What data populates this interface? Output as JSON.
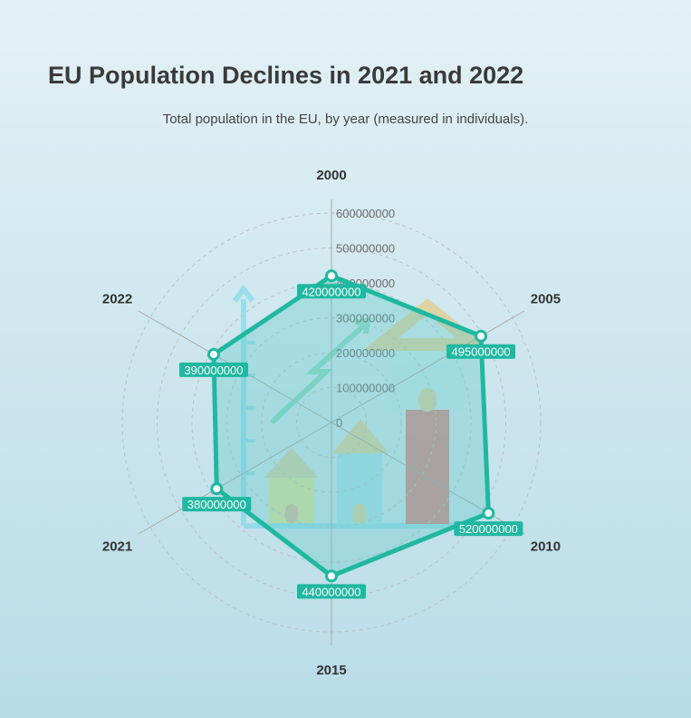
{
  "title": "EU Population Declines in 2021 and 2022",
  "subtitle": "Total population in the EU, by year (measured in individuals).",
  "colors": {
    "accent": "#1fb8a0",
    "fill": "#5fc9c9",
    "label_bg": "#1fb8a0",
    "grid": "#b8c0c4"
  },
  "chart_data": {
    "type": "radar",
    "title": "EU Population Declines in 2021 and 2022",
    "subtitle": "Total population in the EU, by year (measured in individuals).",
    "categories": [
      "2000",
      "2005",
      "2010",
      "2015",
      "2021",
      "2022"
    ],
    "series": [
      {
        "values": [
          420000000,
          495000000,
          520000000,
          440000000,
          380000000,
          390000000
        ]
      }
    ],
    "rlim": [
      0,
      600000000
    ],
    "ticks": [
      "0",
      "100000000",
      "200000000",
      "300000000",
      "400000000",
      "500000000",
      "600000000"
    ],
    "data_labels": [
      "420000000",
      "495000000",
      "520000000",
      "440000000",
      "380000000",
      "390000000"
    ],
    "grid": true,
    "legend": "none"
  }
}
